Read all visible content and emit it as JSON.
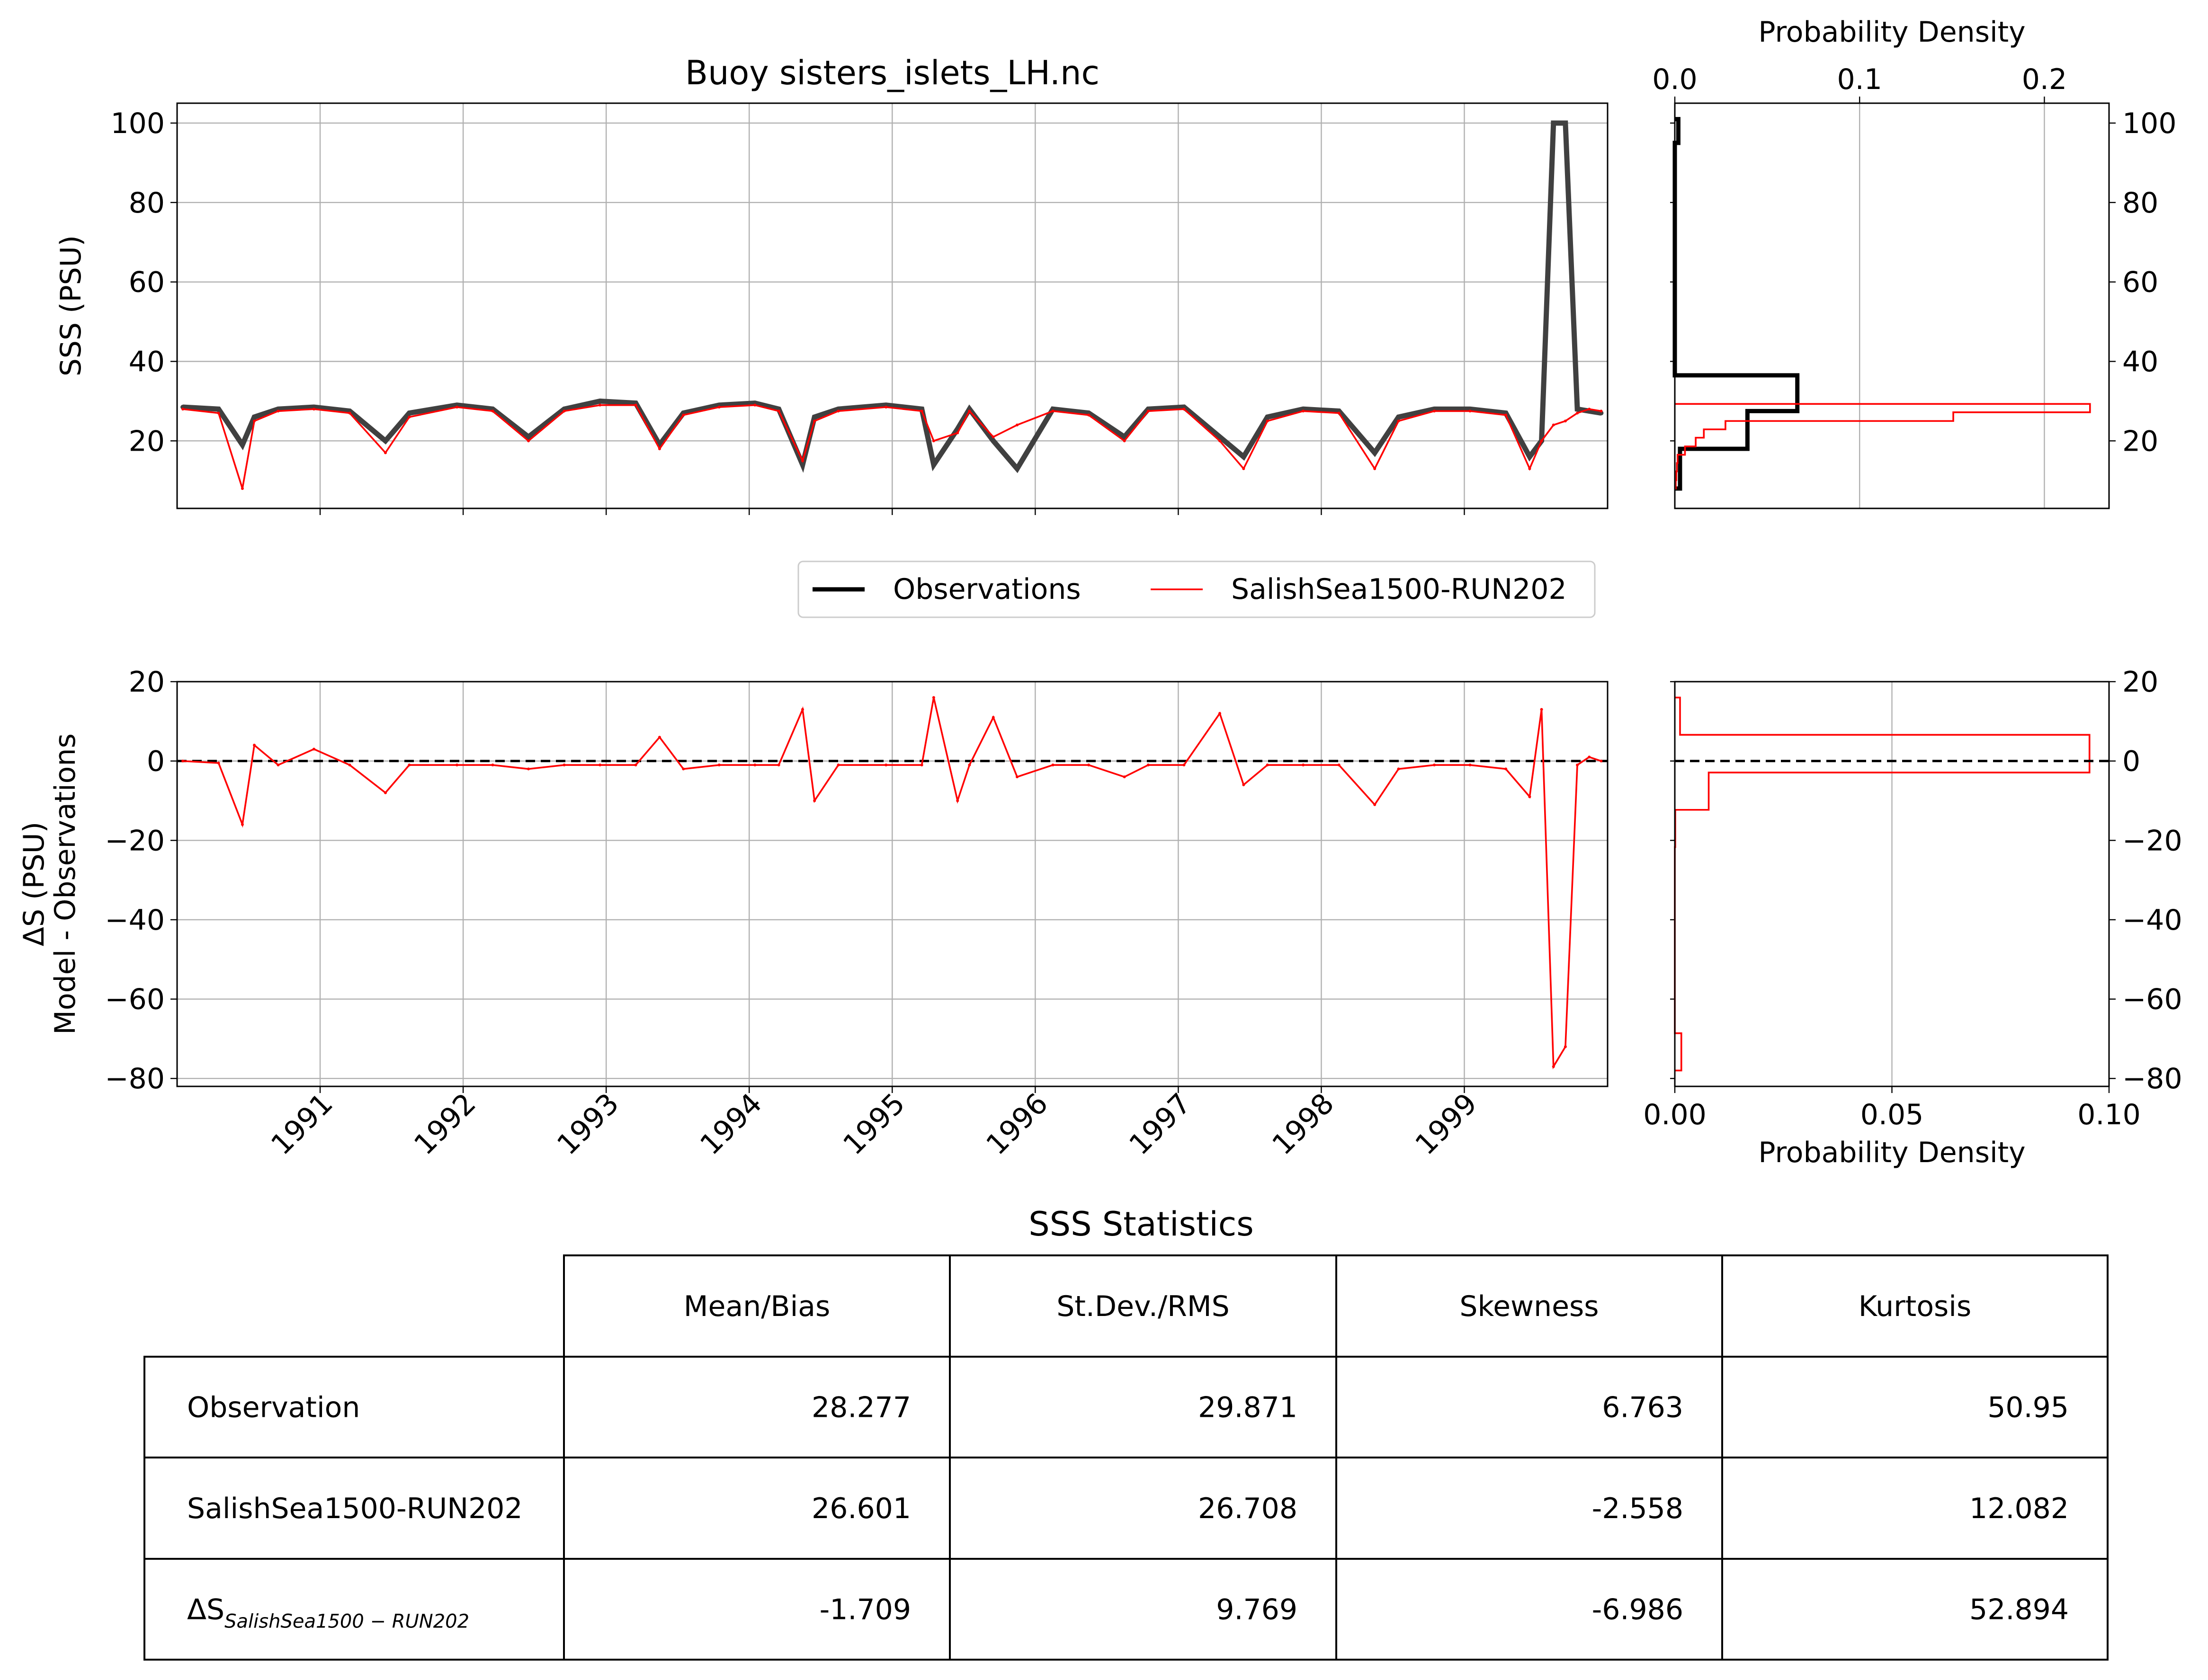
{
  "chart_data": [
    {
      "type": "line",
      "title": "Buoy sisters_islets_LH.nc",
      "xlabel": "",
      "ylabel": "SSS (PSU)",
      "xlim": [
        "1990-01-01",
        "1999-12-31"
      ],
      "ylim": [
        3,
        105
      ],
      "yticks": [
        20,
        40,
        60,
        80,
        100
      ],
      "grid": true,
      "series": [
        {
          "name": "Observations",
          "color": "#000000",
          "x": [
            "1990-01",
            "1990-04",
            "1990-06",
            "1990-07",
            "1990-09",
            "1990-12",
            "1991-03",
            "1991-06",
            "1991-08",
            "1991-12",
            "1992-03",
            "1992-06",
            "1992-09",
            "1992-12",
            "1993-03",
            "1993-05",
            "1993-07",
            "1993-10",
            "1994-01",
            "1994-03",
            "1994-05",
            "1994-06",
            "1994-08",
            "1994-12",
            "1995-03",
            "1995-04",
            "1995-06",
            "1995-07",
            "1995-09",
            "1995-11",
            "1996-02",
            "1996-05",
            "1996-08",
            "1996-10",
            "1997-01",
            "1997-04",
            "1997-06",
            "1997-08",
            "1997-11",
            "1998-02",
            "1998-05",
            "1998-07",
            "1998-10",
            "1999-01",
            "1999-04",
            "1999-06",
            "1999-07",
            "1999-08",
            "1999-09",
            "1999-10",
            "1999-11",
            "1999-12"
          ],
          "y": [
            28.5,
            28,
            19,
            26,
            28,
            28.5,
            27.5,
            20,
            27,
            29,
            28,
            21,
            28,
            30,
            29.5,
            19,
            27,
            29,
            29.5,
            28,
            14,
            26,
            28,
            29,
            28,
            14,
            23,
            28,
            20,
            13,
            28,
            27,
            21,
            28,
            28.5,
            21,
            16,
            26,
            28,
            27.5,
            17,
            26,
            28,
            28,
            27,
            16,
            20,
            100,
            100,
            28,
            27.5,
            27
          ]
        },
        {
          "name": "SalishSea1500-RUN202",
          "color": "#ff0000",
          "x": [
            "1990-01",
            "1990-04",
            "1990-06",
            "1990-07",
            "1990-09",
            "1990-12",
            "1991-03",
            "1991-06",
            "1991-08",
            "1991-12",
            "1992-03",
            "1992-06",
            "1992-09",
            "1992-12",
            "1993-03",
            "1993-05",
            "1993-07",
            "1993-10",
            "1994-01",
            "1994-03",
            "1994-05",
            "1994-06",
            "1994-08",
            "1994-12",
            "1995-03",
            "1995-04",
            "1995-06",
            "1995-07",
            "1995-09",
            "1995-11",
            "1996-02",
            "1996-05",
            "1996-08",
            "1996-10",
            "1997-01",
            "1997-04",
            "1997-06",
            "1997-08",
            "1997-11",
            "1998-02",
            "1998-05",
            "1998-07",
            "1998-10",
            "1999-01",
            "1999-04",
            "1999-06",
            "1999-07",
            "1999-08",
            "1999-09",
            "1999-10",
            "1999-11",
            "1999-12"
          ],
          "y": [
            28,
            27,
            8,
            25,
            27.5,
            28,
            27,
            17,
            26,
            28.5,
            27.5,
            20,
            27.5,
            29,
            29,
            18,
            26.5,
            28.5,
            29,
            27.5,
            15,
            25,
            27.5,
            28.5,
            27.5,
            20,
            22,
            27.5,
            21,
            24,
            27.5,
            26.5,
            20,
            27.5,
            28,
            20,
            13,
            25,
            27.5,
            27,
            13,
            25,
            27.5,
            27.5,
            26.5,
            13,
            20,
            24,
            25,
            27,
            28,
            27.5
          ]
        }
      ]
    },
    {
      "type": "histogram",
      "xlabel": "Probability Density",
      "ylabel": "",
      "xlim": [
        0,
        0.235
      ],
      "xticks": [
        0.0,
        0.1,
        0.2
      ],
      "tick_labels": [
        "0.0",
        "0.1",
        "0.2"
      ],
      "ylim": [
        3,
        105
      ],
      "yticks": [
        20,
        40,
        60,
        80,
        100
      ],
      "grid": true,
      "series": [
        {
          "name": "Observations",
          "color": "#000000",
          "bin_edges": [
            8,
            18,
            27.5,
            36.5,
            45,
            55,
            65,
            75,
            85,
            95,
            101
          ],
          "density": [
            0.0028,
            0.0393,
            0.0663,
            0.0,
            0.0,
            0.0,
            0.0,
            0.0,
            0.0,
            0.0019
          ]
        },
        {
          "name": "SalishSea1500-RUN202",
          "color": "#ff0000",
          "bin_edges": [
            8,
            10.1,
            12.3,
            14.4,
            16.5,
            18.6,
            20.8,
            22.9,
            25.0,
            27.2,
            29.3
          ],
          "density": [
            0.0005,
            0.0008,
            0.0011,
            0.0015,
            0.0055,
            0.0113,
            0.0157,
            0.0274,
            0.1507,
            0.2247
          ]
        }
      ]
    },
    {
      "type": "line",
      "xlabel": "",
      "ylabel": "ΔS (PSU)",
      "ylabel2": "Model - Observations",
      "xlim": [
        "1990-01-01",
        "1999-12-31"
      ],
      "ylim": [
        -82,
        20
      ],
      "yticks": [
        -80,
        -60,
        -40,
        -20,
        0,
        20
      ],
      "xticks": [
        "1991",
        "1992",
        "1993",
        "1994",
        "1995",
        "1996",
        "1997",
        "1998",
        "1999"
      ],
      "grid": true,
      "zero_line": 0,
      "series": [
        {
          "name": "SalishSea1500-RUN202",
          "color": "#ff0000",
          "x": [
            "1990-01",
            "1990-04",
            "1990-06",
            "1990-07",
            "1990-09",
            "1990-12",
            "1991-03",
            "1991-06",
            "1991-08",
            "1991-12",
            "1992-03",
            "1992-06",
            "1992-09",
            "1992-12",
            "1993-03",
            "1993-05",
            "1993-07",
            "1993-10",
            "1994-01",
            "1994-03",
            "1994-05",
            "1994-06",
            "1994-08",
            "1994-12",
            "1995-03",
            "1995-04",
            "1995-06",
            "1995-07",
            "1995-09",
            "1995-11",
            "1996-02",
            "1996-05",
            "1996-08",
            "1996-10",
            "1997-01",
            "1997-04",
            "1997-06",
            "1997-08",
            "1997-11",
            "1998-02",
            "1998-05",
            "1998-07",
            "1998-10",
            "1999-01",
            "1999-04",
            "1999-06",
            "1999-07",
            "1999-08",
            "1999-09",
            "1999-10",
            "1999-11",
            "1999-12"
          ],
          "y": [
            0,
            -0.5,
            -16,
            4,
            -1,
            3,
            -1,
            -8,
            -1,
            -1,
            -1,
            -2,
            -1,
            -1,
            -1,
            6,
            -2,
            -1,
            -1,
            -1,
            13,
            -10,
            -1,
            -1,
            -1,
            16,
            -10,
            -1,
            11,
            -4,
            -1,
            -1,
            -4,
            -1,
            -1,
            12,
            -6,
            -1,
            -1,
            -1,
            -11,
            -2,
            -1,
            -1,
            -2,
            -9,
            13,
            -77,
            -72,
            -1,
            1,
            0
          ]
        }
      ]
    },
    {
      "type": "histogram",
      "xlabel": "Probability Density",
      "ylabel": "",
      "xlim": [
        0,
        0.1
      ],
      "xticks": [
        0.0,
        0.05,
        0.1
      ],
      "tick_labels": [
        "0.00",
        "0.05",
        "0.10"
      ],
      "ylim": [
        -82,
        20
      ],
      "yticks": [
        -80,
        -60,
        -40,
        -20,
        0,
        20
      ],
      "grid": true,
      "zero_line": 0,
      "series": [
        {
          "name": "SalishSea1500-RUN202",
          "color": "#ff0000",
          "bin_edges": [
            -78,
            -68.6,
            -59.2,
            -49.8,
            -40.5,
            -31.1,
            -21.7,
            -12.3,
            -2.9,
            6.6,
            16
          ],
          "density": [
            0.0015,
            0.0,
            0.0,
            0.0,
            0.0,
            0.0,
            0.0001,
            0.0078,
            0.0955,
            0.0012
          ]
        }
      ]
    },
    {
      "type": "table",
      "title": "SSS Statistics",
      "columns": [
        "",
        "Mean/Bias",
        "St.Dev./RMS",
        "Skewness",
        "Kurtosis"
      ],
      "rows": [
        {
          "label": "Observation",
          "values": [
            "28.277",
            "29.871",
            "6.763",
            "50.95"
          ]
        },
        {
          "label": "SalishSea1500-RUN202",
          "values": [
            "26.601",
            "26.708",
            "-2.558",
            "12.082"
          ]
        },
        {
          "label": "ΔS",
          "label_subscript": "SalishSea1500 − RUN202",
          "values": [
            "-1.709",
            "9.769",
            "-6.986",
            "52.894"
          ]
        }
      ]
    }
  ],
  "legend": {
    "placement": "center",
    "entries": [
      {
        "label": "Observations",
        "color": "#000000"
      },
      {
        "label": "SalishSea1500-RUN202",
        "color": "#ff0000"
      }
    ]
  }
}
